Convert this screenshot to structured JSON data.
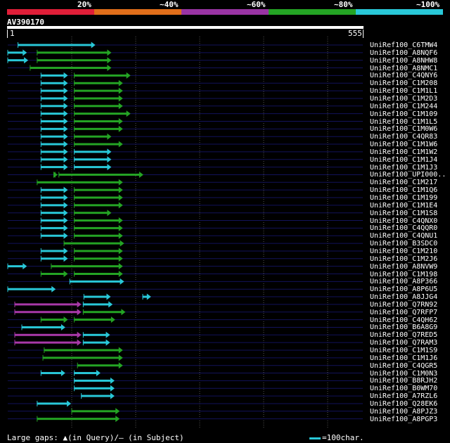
{
  "legend": {
    "segments": [
      {
        "label": "20%",
        "color": "#e01e38"
      },
      {
        "label": "~40%",
        "color": "#e06e1a"
      },
      {
        "label": "~60%",
        "color": "#9a34a4"
      },
      {
        "label": "~80%",
        "color": "#24a424"
      },
      {
        "label": "~100%",
        "color": "#29c8d8"
      }
    ]
  },
  "query": {
    "id": "AV390170",
    "start": "1",
    "end": "555",
    "length": 555
  },
  "colors": {
    "cyan": "#29c8d8",
    "green": "#24a424",
    "magenta": "#a838a8",
    "line": "#12125a",
    "gap": "#ffe060"
  },
  "hits": [
    {
      "label": "UniRef100_C6TMW4",
      "bars": [
        [
          "c",
          16,
          137
        ]
      ]
    },
    {
      "label": "UniRef100_A8NQF6",
      "bars": [
        [
          "c",
          0,
          30
        ],
        [
          "g",
          46,
          162
        ]
      ]
    },
    {
      "label": "UniRef100_A8NHW8",
      "bars": [
        [
          "c",
          0,
          32
        ],
        [
          "g",
          46,
          162
        ]
      ]
    },
    {
      "label": "UniRef100_A8NMC1",
      "bars": [
        [
          "g",
          35,
          162
        ]
      ]
    },
    {
      "label": "UniRef100_C4QNY6",
      "bars": [
        [
          "c",
          52,
          94
        ],
        [
          "g",
          104,
          192
        ]
      ]
    },
    {
      "label": "UniRef100_C1M208",
      "bars": [
        [
          "c",
          52,
          94
        ],
        [
          "g",
          104,
          180
        ]
      ]
    },
    {
      "label": "UniRef100_C1M1L1",
      "bars": [
        [
          "c",
          52,
          94
        ],
        [
          "g",
          104,
          180
        ]
      ]
    },
    {
      "label": "UniRef100_C1M2D3",
      "bars": [
        [
          "c",
          52,
          94
        ],
        [
          "g",
          104,
          180
        ]
      ]
    },
    {
      "label": "UniRef100_C1M244",
      "bars": [
        [
          "c",
          52,
          94
        ],
        [
          "g",
          104,
          180
        ]
      ]
    },
    {
      "label": "UniRef100_C1M109",
      "bars": [
        [
          "c",
          52,
          94
        ],
        [
          "g",
          104,
          192
        ]
      ]
    },
    {
      "label": "UniRef100_C1M1L5",
      "bars": [
        [
          "c",
          52,
          94
        ],
        [
          "g",
          104,
          180
        ]
      ]
    },
    {
      "label": "UniRef100_C1M0W6",
      "bars": [
        [
          "c",
          52,
          94
        ],
        [
          "g",
          104,
          180
        ]
      ]
    },
    {
      "label": "UniRef100_C4QR83",
      "bars": [
        [
          "c",
          52,
          94
        ],
        [
          "g",
          104,
          162
        ]
      ]
    },
    {
      "label": "UniRef100_C1M1W6",
      "bars": [
        [
          "c",
          52,
          94
        ],
        [
          "g",
          104,
          180
        ]
      ]
    },
    {
      "label": "UniRef100_C1M1W2",
      "bars": [
        [
          "c",
          52,
          94
        ],
        [
          "c",
          104,
          162
        ]
      ]
    },
    {
      "label": "UniRef100_C1M1J4",
      "bars": [
        [
          "c",
          52,
          94
        ],
        [
          "c",
          104,
          162
        ]
      ]
    },
    {
      "label": "UniRef100_C1M1J3",
      "bars": [
        [
          "c",
          52,
          94
        ],
        [
          "c",
          104,
          162
        ]
      ]
    },
    {
      "label": "UniRef100_UPI000..",
      "bars": [
        [
          "g",
          74,
          78
        ],
        [
          "g",
          80,
          212
        ]
      ]
    },
    {
      "label": "UniRef100_C1M217",
      "bars": [
        [
          "g",
          46,
          180
        ]
      ]
    },
    {
      "label": "UniRef100_C1M1Q6",
      "bars": [
        [
          "c",
          52,
          94
        ],
        [
          "g",
          104,
          180
        ]
      ]
    },
    {
      "label": "UniRef100_C1M199",
      "bars": [
        [
          "c",
          52,
          94
        ],
        [
          "g",
          104,
          180
        ]
      ]
    },
    {
      "label": "UniRef100_C1M1E4",
      "bars": [
        [
          "c",
          52,
          94
        ],
        [
          "g",
          104,
          180
        ]
      ]
    },
    {
      "label": "UniRef100_C1M1S8",
      "bars": [
        [
          "c",
          52,
          94
        ],
        [
          "g",
          104,
          162
        ]
      ]
    },
    {
      "label": "UniRef100_C4QNX0",
      "bars": [
        [
          "c",
          52,
          94
        ],
        [
          "g",
          104,
          180
        ]
      ]
    },
    {
      "label": "UniRef100_C4QQR0",
      "bars": [
        [
          "c",
          52,
          94
        ],
        [
          "g",
          104,
          180
        ]
      ]
    },
    {
      "label": "UniRef100_C4QNU1",
      "bars": [
        [
          "c",
          52,
          94
        ],
        [
          "g",
          104,
          180
        ]
      ]
    },
    {
      "label": "UniRef100_B3SDC0",
      "bars": [
        [
          "g",
          88,
          182
        ]
      ]
    },
    {
      "label": "UniRef100_C1M210",
      "bars": [
        [
          "c",
          52,
          94
        ],
        [
          "g",
          104,
          180
        ]
      ]
    },
    {
      "label": "UniRef100_C1M2J6",
      "bars": [
        [
          "c",
          52,
          94
        ],
        [
          "g",
          104,
          180
        ]
      ]
    },
    {
      "label": "UniRef100_A8NVW9",
      "bars": [
        [
          "c",
          0,
          30
        ],
        [
          "g",
          68,
          180
        ]
      ]
    },
    {
      "label": "UniRef100_C1M198",
      "bars": [
        [
          "g",
          52,
          94
        ],
        [
          "g",
          104,
          180
        ]
      ]
    },
    {
      "label": "UniRef100_A8P366",
      "bars": [
        [
          "c",
          97,
          182
        ]
      ]
    },
    {
      "label": "UniRef100_A8P6U5",
      "bars": [
        [
          "c",
          0,
          75
        ]
      ]
    },
    {
      "label": "UniRef100_A8JJG4",
      "bars": [
        [
          "c",
          119,
          161
        ],
        [
          "c",
          211,
          224
        ]
      ]
    },
    {
      "label": "UniRef100_Q7RN92",
      "bars": [
        [
          "m",
          11,
          115
        ],
        [
          "c",
          118,
          164
        ]
      ]
    },
    {
      "label": "UniRef100_Q7RFP7",
      "bars": [
        [
          "m",
          11,
          115
        ],
        [
          "g",
          118,
          184
        ]
      ]
    },
    {
      "label": "UniRef100_C4QH62",
      "bars": [
        [
          "g",
          52,
          94
        ],
        [
          "g",
          104,
          168
        ]
      ]
    },
    {
      "label": "UniRef100_B6A8G9",
      "bars": [
        [
          "c",
          22,
          90
        ]
      ]
    },
    {
      "label": "UniRef100_Q7RED5",
      "bars": [
        [
          "m",
          11,
          115
        ],
        [
          "c",
          118,
          160
        ]
      ]
    },
    {
      "label": "UniRef100_Q7RAM3",
      "bars": [
        [
          "m",
          11,
          115
        ],
        [
          "c",
          118,
          160
        ]
      ]
    },
    {
      "label": "UniRef100_C1M1S9",
      "bars": [
        [
          "g",
          57,
          180
        ]
      ]
    },
    {
      "label": "UniRef100_C1M1J6",
      "bars": [
        [
          "g",
          55,
          180
        ]
      ]
    },
    {
      "label": "UniRef100_C4QGR5",
      "bars": [
        [
          "g",
          109,
          180
        ]
      ]
    },
    {
      "label": "UniRef100_C1M0N3",
      "bars": [
        [
          "c",
          52,
          90
        ],
        [
          "c",
          104,
          145
        ]
      ]
    },
    {
      "label": "UniRef100_B8RJH2",
      "bars": [
        [
          "c",
          104,
          167
        ]
      ]
    },
    {
      "label": "UniRef100_B0WM70",
      "bars": [
        [
          "c",
          104,
          167
        ]
      ]
    },
    {
      "label": "UniRef100_A7RZL6",
      "bars": [
        [
          "c",
          115,
          167
        ]
      ]
    },
    {
      "label": "UniRef100_Q28EK6",
      "bars": [
        [
          "c",
          46,
          99
        ]
      ]
    },
    {
      "label": "UniRef100_A8PJZ3",
      "bars": [
        [
          "g",
          100,
          175
        ]
      ]
    },
    {
      "label": "UniRef100_A8PGP3",
      "bars": [
        [
          "g",
          46,
          175
        ]
      ]
    }
  ],
  "footer": {
    "gaps_text": "Large gaps: ▲(in Query)/– (in Subject)",
    "scale_text": "=100char."
  }
}
